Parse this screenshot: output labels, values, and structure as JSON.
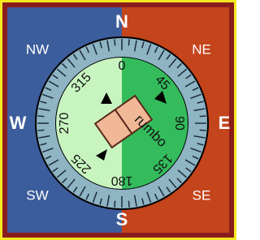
{
  "cardinals": {
    "north": "N",
    "south": "S",
    "east": "E",
    "west": "W"
  },
  "intercardinals": {
    "northwest": "NW",
    "northeast": "NE",
    "southwest": "SW",
    "southeast": "SE"
  },
  "degrees": [
    "0",
    "45",
    "90",
    "135",
    "180",
    "225",
    "270",
    "315"
  ],
  "center_label": "rumbo"
}
